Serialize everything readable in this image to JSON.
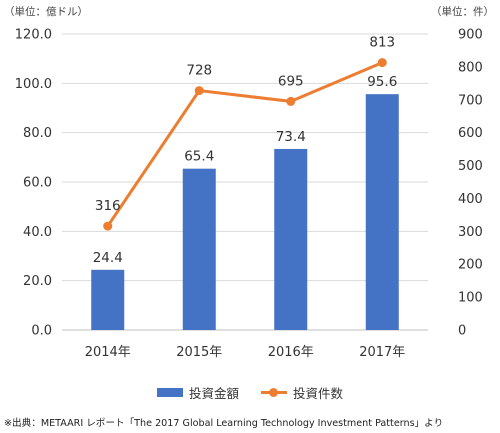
{
  "chart_data": {
    "type": "bar",
    "categories": [
      "2014年",
      "2015年",
      "2016年",
      "2017年"
    ],
    "series": [
      {
        "name": "投資金額",
        "type": "bar",
        "axis": "left",
        "values": [
          24.4,
          65.4,
          73.4,
          95.6
        ],
        "labels": [
          "24.4",
          "65.4",
          "73.4",
          "95.6"
        ],
        "color": "#4472C4"
      },
      {
        "name": "投資件数",
        "type": "line",
        "axis": "right",
        "values": [
          316,
          728,
          695,
          813
        ],
        "labels": [
          "316",
          "728",
          "695",
          "813"
        ],
        "color": "#ED7D31"
      }
    ],
    "y_left": {
      "min": 0,
      "max": 120,
      "ticks": [
        "0.0",
        "20.0",
        "40.0",
        "60.0",
        "80.0",
        "100.0",
        "120.0"
      ],
      "unit_label": "（単位：億ドル）"
    },
    "y_right": {
      "min": 0,
      "max": 900,
      "ticks": [
        "0",
        "100",
        "200",
        "300",
        "400",
        "500",
        "600",
        "700",
        "800",
        "900"
      ],
      "unit_label": "（単位：件）"
    },
    "grid": true,
    "legend": "bottom"
  },
  "source": "※出典：METAARI レポート「The 2017 Global Learning Technology Investment Patterns」より"
}
